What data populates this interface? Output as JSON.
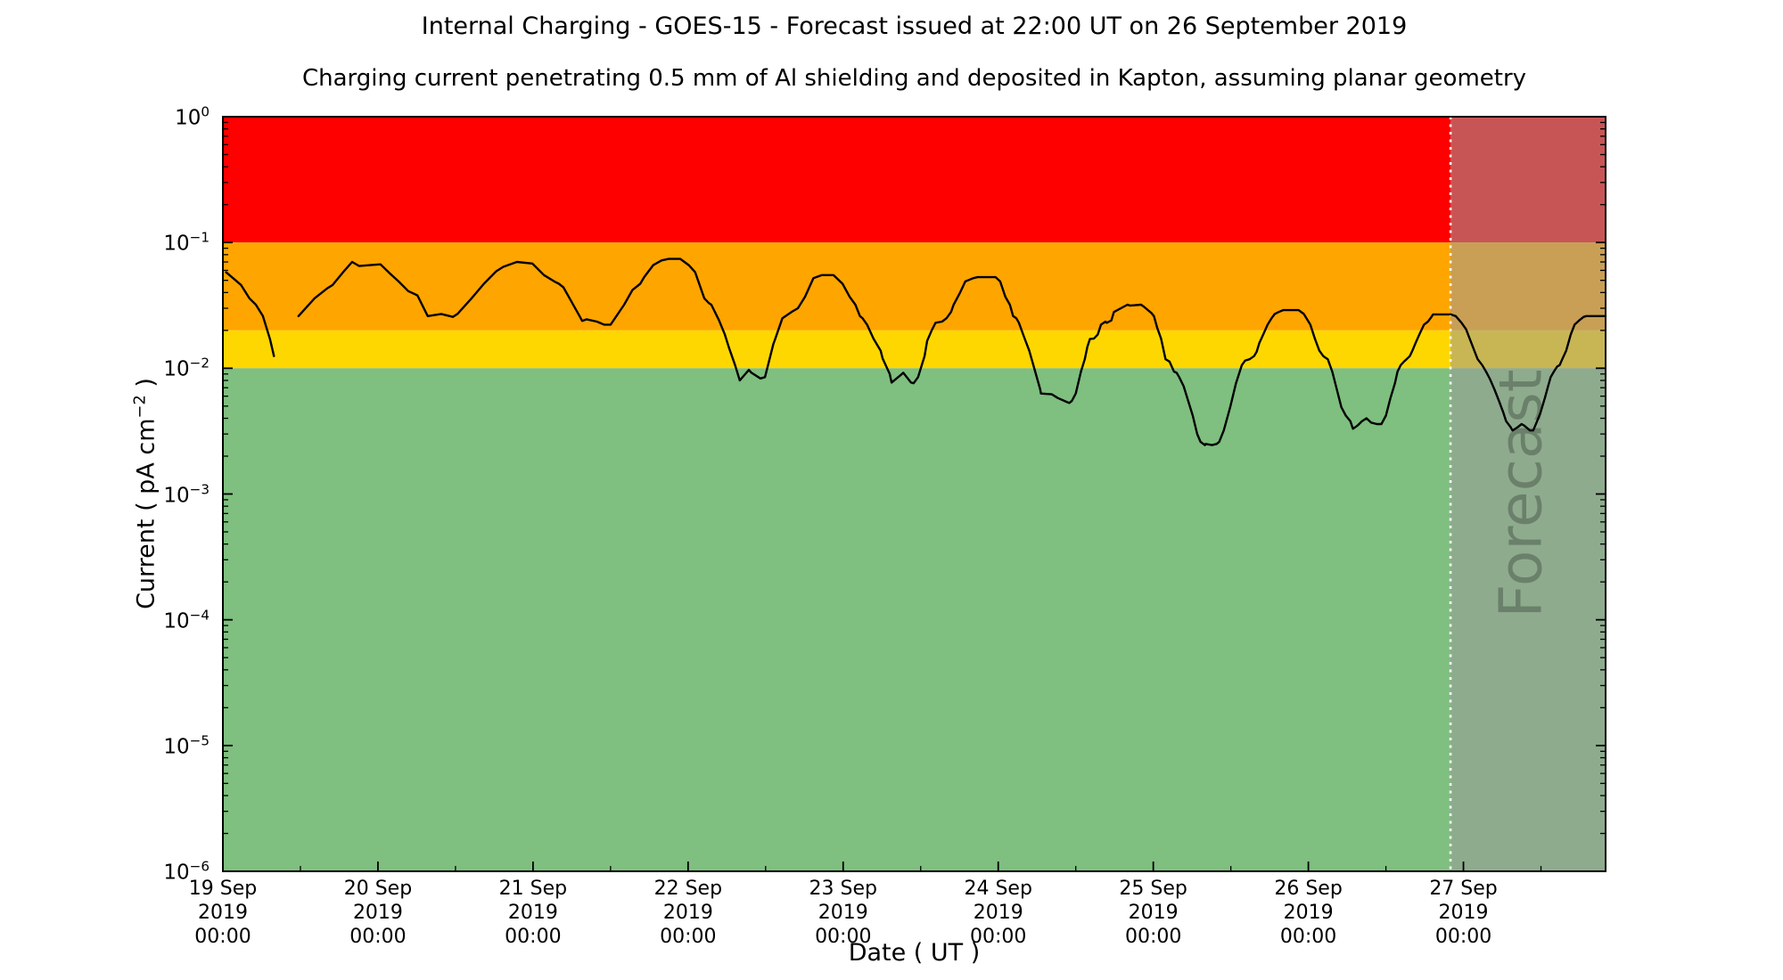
{
  "figure": {
    "title": "Internal Charging - GOES-15 - Forecast issued at 22:00 UT on 26 September 2019",
    "subtitle": "Charging current penetrating 0.5 mm of Al shielding and deposited in Kapton, assuming planar geometry",
    "xlabel": "Date ( UT )",
    "ylabel_pre": "Current ( pA cm",
    "ylabel_sup": "−2",
    "ylabel_post": " )",
    "forecast_label": "Forecast"
  },
  "colors": {
    "band_red": "#ff0000",
    "band_orange": "#ffa500",
    "band_yellow": "#ffd700",
    "band_green": "#7fbf7f",
    "forecast_overlay": "rgba(155,155,155,0.55)",
    "forecast_divider": "#ffffff",
    "watermark_text": "rgba(0,0,0,0.25)",
    "line": "#000000",
    "axis": "#000000"
  },
  "chart_data": {
    "type": "line",
    "title": "Internal Charging - GOES-15 - Forecast issued at 22:00 UT on 26 September 2019",
    "x_unit": "hours since 19 Sep 2019 00:00 UT",
    "x_range_hours": [
      0,
      214
    ],
    "y_scale": "log10",
    "ylim": [
      1e-06,
      1.0
    ],
    "grid": false,
    "forecast_start_hour": 190,
    "x_ticks": [
      {
        "hour": 0,
        "lines": [
          "19 Sep",
          "2019",
          "00:00"
        ]
      },
      {
        "hour": 24,
        "lines": [
          "20 Sep",
          "2019",
          "00:00"
        ]
      },
      {
        "hour": 48,
        "lines": [
          "21 Sep",
          "2019",
          "00:00"
        ]
      },
      {
        "hour": 72,
        "lines": [
          "22 Sep",
          "2019",
          "00:00"
        ]
      },
      {
        "hour": 96,
        "lines": [
          "23 Sep",
          "2019",
          "00:00"
        ]
      },
      {
        "hour": 120,
        "lines": [
          "24 Sep",
          "2019",
          "00:00"
        ]
      },
      {
        "hour": 144,
        "lines": [
          "25 Sep",
          "2019",
          "00:00"
        ]
      },
      {
        "hour": 168,
        "lines": [
          "26 Sep",
          "2019",
          "00:00"
        ]
      },
      {
        "hour": 192,
        "lines": [
          "27 Sep",
          "2019",
          "00:00"
        ]
      }
    ],
    "x_minor_tick_hours": [
      12,
      36,
      60,
      84,
      108,
      132,
      156,
      180,
      204
    ],
    "y_ticks": [
      {
        "value": 1.0,
        "exp": "0"
      },
      {
        "value": 0.1,
        "exp": "−1"
      },
      {
        "value": 0.01,
        "exp": "−2"
      },
      {
        "value": 0.001,
        "exp": "−3"
      },
      {
        "value": 0.0001,
        "exp": "−4"
      },
      {
        "value": 1e-05,
        "exp": "−5"
      },
      {
        "value": 1e-06,
        "exp": "−6"
      }
    ],
    "bands": [
      {
        "name": "red-alert-band",
        "from": 0.1,
        "to": 1.0,
        "color_key": "band_red"
      },
      {
        "name": "orange-alert-band",
        "from": 0.02,
        "to": 0.1,
        "color_key": "band_orange"
      },
      {
        "name": "yellow-alert-band",
        "from": 0.01,
        "to": 0.02,
        "color_key": "band_yellow"
      },
      {
        "name": "green-quiet-band",
        "from": 1e-06,
        "to": 0.01,
        "color_key": "band_green"
      }
    ],
    "series": [
      {
        "name": "observed-segment-1",
        "points": [
          [
            0.5,
            0.058
          ],
          [
            1.4,
            0.053
          ],
          [
            2.8,
            0.046
          ],
          [
            4.1,
            0.036
          ],
          [
            5.1,
            0.032
          ],
          [
            6.2,
            0.026
          ],
          [
            7.3,
            0.017
          ],
          [
            7.9,
            0.0125
          ]
        ]
      },
      {
        "name": "observed-segment-2",
        "points": [
          [
            11.7,
            0.026
          ],
          [
            14.2,
            0.036
          ],
          [
            16.1,
            0.043
          ],
          [
            17.0,
            0.046
          ],
          [
            18.6,
            0.058
          ],
          [
            20.0,
            0.07
          ],
          [
            21.1,
            0.065
          ],
          [
            22.8,
            0.066
          ],
          [
            24.4,
            0.067
          ],
          [
            25.8,
            0.057
          ],
          [
            27.2,
            0.049
          ],
          [
            28.7,
            0.041
          ],
          [
            30.1,
            0.038
          ],
          [
            31.7,
            0.026
          ],
          [
            33.8,
            0.027
          ],
          [
            35.6,
            0.0256
          ],
          [
            36.3,
            0.027
          ],
          [
            38.5,
            0.036
          ],
          [
            40.4,
            0.047
          ],
          [
            42.3,
            0.059
          ],
          [
            43.4,
            0.064
          ],
          [
            45.5,
            0.07
          ],
          [
            47.9,
            0.068
          ],
          [
            49.7,
            0.055
          ],
          [
            51.3,
            0.049
          ],
          [
            52.0,
            0.047
          ],
          [
            52.7,
            0.044
          ],
          [
            55.2,
            0.026
          ],
          [
            55.6,
            0.0238
          ],
          [
            56.3,
            0.0245
          ],
          [
            57.9,
            0.0235
          ],
          [
            59.0,
            0.0222
          ],
          [
            60.0,
            0.0222
          ],
          [
            62.1,
            0.032
          ],
          [
            63.4,
            0.042
          ],
          [
            64.6,
            0.047
          ],
          [
            65.2,
            0.053
          ],
          [
            66.6,
            0.066
          ],
          [
            67.9,
            0.072
          ],
          [
            69.0,
            0.074
          ],
          [
            70.8,
            0.074
          ],
          [
            72.1,
            0.066
          ],
          [
            73.1,
            0.058
          ],
          [
            74.5,
            0.036
          ],
          [
            75.2,
            0.033
          ],
          [
            75.6,
            0.032
          ],
          [
            76.8,
            0.024
          ],
          [
            77.7,
            0.0185
          ],
          [
            78.3,
            0.0147
          ],
          [
            79.3,
            0.0105
          ],
          [
            80.0,
            0.008
          ],
          [
            81.4,
            0.0097
          ],
          [
            81.8,
            0.0092
          ],
          [
            83.2,
            0.0083
          ],
          [
            83.9,
            0.0085
          ],
          [
            85.2,
            0.0156
          ],
          [
            85.5,
            0.0172
          ],
          [
            86.6,
            0.025
          ],
          [
            88.0,
            0.028
          ],
          [
            89.0,
            0.03
          ],
          [
            90.1,
            0.037
          ],
          [
            91.4,
            0.052
          ],
          [
            92.7,
            0.055
          ],
          [
            94.5,
            0.055
          ],
          [
            95.9,
            0.047
          ],
          [
            97.0,
            0.037
          ],
          [
            97.9,
            0.032
          ],
          [
            98.6,
            0.026
          ],
          [
            99.0,
            0.025
          ],
          [
            99.7,
            0.0222
          ],
          [
            100.7,
            0.0172
          ],
          [
            101.8,
            0.0138
          ],
          [
            102.1,
            0.012
          ],
          [
            103.2,
            0.009
          ],
          [
            103.5,
            0.0077
          ],
          [
            105.1,
            0.009
          ],
          [
            105.3,
            0.0092
          ],
          [
            106.5,
            0.0077
          ],
          [
            106.9,
            0.0076
          ],
          [
            107.6,
            0.0085
          ],
          [
            108.6,
            0.0125
          ],
          [
            109.0,
            0.0165
          ],
          [
            109.7,
            0.02
          ],
          [
            110.3,
            0.023
          ],
          [
            111.3,
            0.0235
          ],
          [
            112.0,
            0.025
          ],
          [
            112.7,
            0.028
          ],
          [
            113.1,
            0.032
          ],
          [
            114.1,
            0.04
          ],
          [
            114.9,
            0.049
          ],
          [
            116.1,
            0.052
          ],
          [
            116.8,
            0.053
          ],
          [
            119.6,
            0.053
          ],
          [
            120.3,
            0.049
          ],
          [
            121.1,
            0.037
          ],
          [
            121.8,
            0.032
          ],
          [
            122.3,
            0.026
          ],
          [
            122.8,
            0.025
          ],
          [
            123.2,
            0.023
          ],
          [
            124.1,
            0.0172
          ],
          [
            124.8,
            0.0138
          ],
          [
            125.5,
            0.0103
          ],
          [
            126.5,
            0.0068
          ],
          [
            126.6,
            0.0063
          ],
          [
            128.3,
            0.0062
          ],
          [
            129.2,
            0.0058
          ],
          [
            130.6,
            0.0054
          ],
          [
            131.0,
            0.0053
          ],
          [
            131.4,
            0.0055
          ],
          [
            132.0,
            0.0063
          ],
          [
            132.8,
            0.0094
          ],
          [
            133.4,
            0.0118
          ],
          [
            133.8,
            0.0148
          ],
          [
            134.2,
            0.0171
          ],
          [
            134.8,
            0.0172
          ],
          [
            135.4,
            0.0185
          ],
          [
            135.9,
            0.0222
          ],
          [
            136.6,
            0.0235
          ],
          [
            136.8,
            0.023
          ],
          [
            137.5,
            0.024
          ],
          [
            137.9,
            0.028
          ],
          [
            140.0,
            0.032
          ],
          [
            140.4,
            0.0315
          ],
          [
            142.1,
            0.032
          ],
          [
            142.5,
            0.031
          ],
          [
            143.7,
            0.0275
          ],
          [
            144.1,
            0.026
          ],
          [
            144.6,
            0.021
          ],
          [
            145.2,
            0.0172
          ],
          [
            145.9,
            0.0118
          ],
          [
            146.5,
            0.0113
          ],
          [
            147.2,
            0.0094
          ],
          [
            147.6,
            0.0092
          ],
          [
            148.0,
            0.0085
          ],
          [
            148.7,
            0.0072
          ],
          [
            149.4,
            0.0055
          ],
          [
            150.1,
            0.0042
          ],
          [
            150.8,
            0.003
          ],
          [
            151.3,
            0.0026
          ],
          [
            152.0,
            0.00245
          ],
          [
            152.1,
            0.0025
          ],
          [
            153.1,
            0.00245
          ],
          [
            153.8,
            0.0025
          ],
          [
            154.2,
            0.0026
          ],
          [
            154.9,
            0.0032
          ],
          [
            155.9,
            0.0049
          ],
          [
            156.8,
            0.0076
          ],
          [
            157.7,
            0.0106
          ],
          [
            158.2,
            0.0115
          ],
          [
            158.9,
            0.0118
          ],
          [
            159.6,
            0.0125
          ],
          [
            160.0,
            0.0135
          ],
          [
            160.4,
            0.0158
          ],
          [
            161.0,
            0.0185
          ],
          [
            161.7,
            0.0222
          ],
          [
            162.3,
            0.025
          ],
          [
            162.8,
            0.027
          ],
          [
            163.4,
            0.028
          ],
          [
            164.1,
            0.029
          ],
          [
            166.5,
            0.029
          ],
          [
            167.3,
            0.027
          ],
          [
            168.3,
            0.0222
          ],
          [
            169.0,
            0.0172
          ],
          [
            169.7,
            0.0138
          ],
          [
            170.3,
            0.0125
          ],
          [
            171.0,
            0.0118
          ],
          [
            171.7,
            0.0094
          ],
          [
            172.4,
            0.0068
          ],
          [
            173.1,
            0.0049
          ],
          [
            173.8,
            0.0042
          ],
          [
            174.5,
            0.0038
          ],
          [
            174.9,
            0.0033
          ],
          [
            175.6,
            0.0035
          ],
          [
            176.3,
            0.0038
          ],
          [
            177.0,
            0.004
          ],
          [
            177.7,
            0.0037
          ],
          [
            178.6,
            0.0036
          ],
          [
            179.3,
            0.0036
          ],
          [
            180.0,
            0.0042
          ],
          [
            180.7,
            0.0058
          ],
          [
            181.4,
            0.0076
          ],
          [
            181.8,
            0.0094
          ],
          [
            182.3,
            0.0106
          ],
          [
            182.8,
            0.0113
          ],
          [
            183.2,
            0.0118
          ],
          [
            183.7,
            0.0125
          ],
          [
            184.1,
            0.0138
          ],
          [
            184.6,
            0.0159
          ],
          [
            185.2,
            0.0187
          ],
          [
            185.9,
            0.0222
          ],
          [
            186.5,
            0.0235
          ],
          [
            186.9,
            0.025
          ],
          [
            187.3,
            0.0268
          ],
          [
            190.0,
            0.0268
          ]
        ]
      },
      {
        "name": "forecast-segment",
        "points": [
          [
            190.0,
            0.0268
          ],
          [
            190.8,
            0.026
          ],
          [
            191.7,
            0.023
          ],
          [
            192.4,
            0.0204
          ],
          [
            193.1,
            0.0165
          ],
          [
            193.8,
            0.0133
          ],
          [
            194.2,
            0.0118
          ],
          [
            194.9,
            0.0106
          ],
          [
            195.6,
            0.0092
          ],
          [
            196.1,
            0.0082
          ],
          [
            196.8,
            0.0068
          ],
          [
            197.5,
            0.0055
          ],
          [
            198.2,
            0.0044
          ],
          [
            198.6,
            0.0038
          ],
          [
            199.3,
            0.0034
          ],
          [
            199.6,
            0.0032
          ],
          [
            200.4,
            0.0034
          ],
          [
            201.0,
            0.0036
          ],
          [
            201.4,
            0.0035
          ],
          [
            202.3,
            0.0032
          ],
          [
            202.8,
            0.0032
          ],
          [
            203.4,
            0.0038
          ],
          [
            203.9,
            0.0044
          ],
          [
            204.6,
            0.0058
          ],
          [
            205.1,
            0.0072
          ],
          [
            205.5,
            0.0085
          ],
          [
            206.0,
            0.0094
          ],
          [
            206.5,
            0.0103
          ],
          [
            206.9,
            0.0106
          ],
          [
            207.3,
            0.0118
          ],
          [
            207.9,
            0.0138
          ],
          [
            208.6,
            0.0185
          ],
          [
            209.2,
            0.0222
          ],
          [
            209.9,
            0.024
          ],
          [
            210.6,
            0.0256
          ],
          [
            211.0,
            0.026
          ],
          [
            214.0,
            0.026
          ]
        ]
      }
    ]
  }
}
